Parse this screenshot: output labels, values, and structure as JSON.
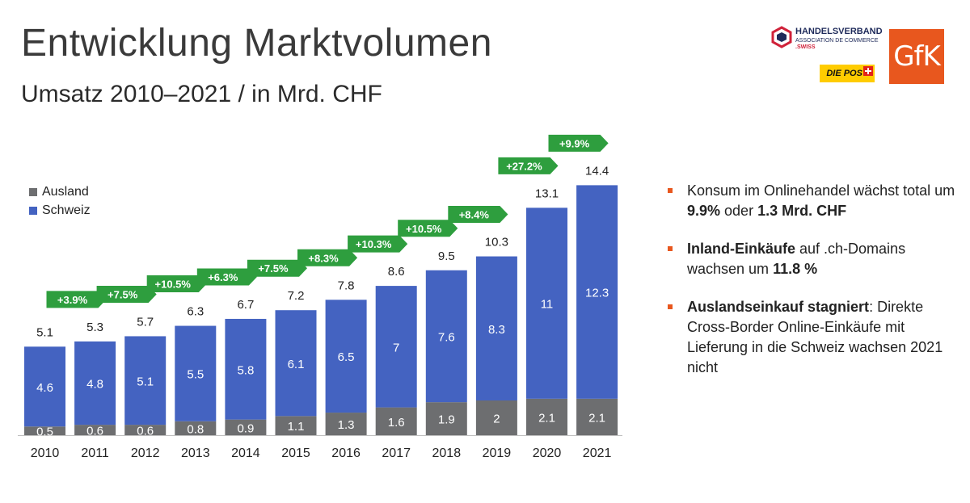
{
  "header": {
    "title": "Entwicklung Marktvolumen",
    "subtitle": "Umsatz 2010–2021 / in Mrd. CHF"
  },
  "logos": {
    "handelsverband": {
      "name": "HANDELSVERBAND",
      "sub": "ASSOCIATION DE COMMERCE",
      "swiss": ".SWISS"
    },
    "post": "DIE POST",
    "gfk": "GfK"
  },
  "chart_data": {
    "type": "bar",
    "stacked": true,
    "categories": [
      "2010",
      "2011",
      "2012",
      "2013",
      "2014",
      "2015",
      "2016",
      "2017",
      "2018",
      "2019",
      "2020",
      "2021"
    ],
    "series": [
      {
        "name": "Ausland",
        "color": "#6d6e70",
        "values": [
          0.5,
          0.6,
          0.6,
          0.8,
          0.9,
          1.1,
          1.3,
          1.6,
          1.9,
          2.0,
          2.1,
          2.1
        ]
      },
      {
        "name": "Schweiz",
        "color": "#4463c1",
        "values": [
          4.6,
          4.8,
          5.1,
          5.5,
          5.8,
          6.1,
          6.5,
          7.0,
          7.6,
          8.3,
          11.0,
          12.3
        ]
      }
    ],
    "totals": [
      "5.1",
      "5.3",
      "5.7",
      "6.3",
      "6.7",
      "7.2",
      "7.8",
      "8.6",
      "9.5",
      "10.3",
      "13.1",
      "14.4"
    ],
    "growth": [
      "+3.9%",
      "+7.5%",
      "+10.5%",
      "+6.3%",
      "+7.5%",
      "+8.3%",
      "+10.3%",
      "+10.5%",
      "+8.4%",
      "+27.2%",
      "+9.9%"
    ],
    "growth_color": "#2e9e3e",
    "ylim": [
      0,
      15
    ],
    "legend": "top-left",
    "grid": false
  },
  "bullets": [
    {
      "bold": "",
      "text": "Konsum im Onlinehandel wächst total um ",
      "bold2": "9.9%",
      "text2": " oder ",
      "bold3": "1.3 Mrd. CHF"
    },
    {
      "bold": "Inland-Einkäufe",
      "text": " auf .ch-Domains wachsen um ",
      "bold2": "11.8 %",
      "text2": "",
      "bold3": ""
    },
    {
      "bold": "Auslandseinkauf stagniert",
      "text": ": Direkte Cross-Border Online-Einkäufe mit Lieferung in die Schweiz wachsen 2021 nicht",
      "bold2": "",
      "text2": "",
      "bold3": ""
    }
  ],
  "accent_color": "#e8571e"
}
